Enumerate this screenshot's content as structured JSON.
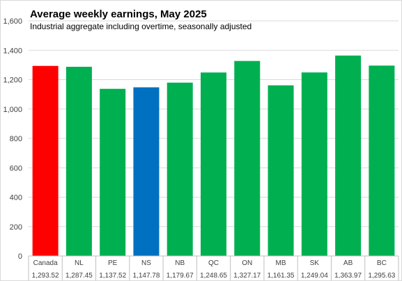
{
  "chart_data": {
    "type": "bar",
    "title": "Average weekly earnings, May 2025",
    "subtitle": "Industrial aggregate including overtime, seasonally adjusted",
    "xlabel": "",
    "ylabel": "",
    "ylim": [
      0,
      1600
    ],
    "ytick_step": 200,
    "ytick_labels": [
      "0",
      "200",
      "400",
      "600",
      "800",
      "1,000",
      "1,200",
      "1,400",
      "1,600"
    ],
    "grid": true,
    "categories": [
      "Canada",
      "NL",
      "PE",
      "NS",
      "NB",
      "QC",
      "ON",
      "MB",
      "SK",
      "AB",
      "BC"
    ],
    "values": [
      1293.52,
      1287.45,
      1137.52,
      1147.78,
      1179.67,
      1248.65,
      1327.17,
      1161.35,
      1249.04,
      1363.97,
      1295.63
    ],
    "value_labels": [
      "1,293.52",
      "1,287.45",
      "1,137.52",
      "1,147.78",
      "1,179.67",
      "1,248.65",
      "1,327.17",
      "1,161.35",
      "1,249.04",
      "1,363.97",
      "1,295.63"
    ],
    "bar_colors": [
      "#ff0000",
      "#00b050",
      "#00b050",
      "#0070c0",
      "#00b050",
      "#00b050",
      "#00b050",
      "#00b050",
      "#00b050",
      "#00b050",
      "#00b050"
    ]
  }
}
